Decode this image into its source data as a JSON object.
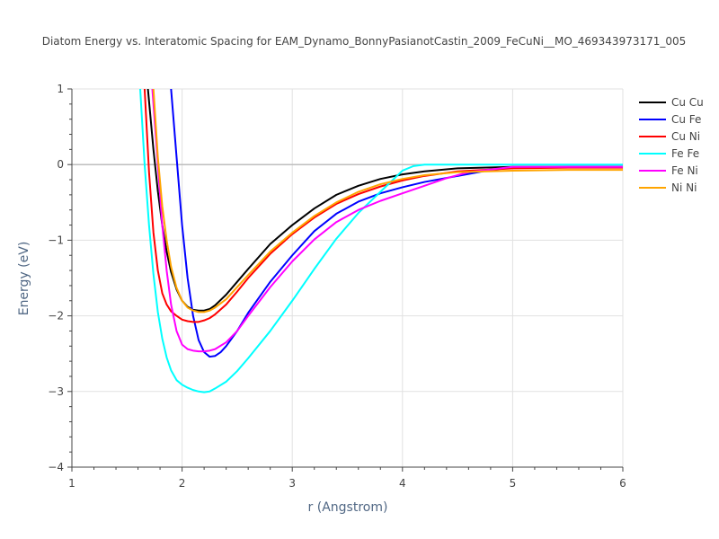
{
  "chart_data": {
    "type": "line",
    "title": "Diatom Energy vs. Interatomic Spacing for EAM_Dynamo_BonnyPasianotCastin_2009_FeCuNi__MO_469343973171_005",
    "xlabel": "r (Angstrom)",
    "ylabel": "Energy (eV)",
    "xlim": [
      1,
      6
    ],
    "ylim": [
      -4,
      1
    ],
    "xticks": [
      1,
      2,
      3,
      4,
      5,
      6
    ],
    "yticks": [
      1,
      0,
      -1,
      -2,
      -3,
      -4
    ],
    "ytick_labels": [
      "1",
      "0",
      "−1",
      "−2",
      "−3",
      "−4"
    ],
    "grid": true,
    "legend_position": "right",
    "series": [
      {
        "name": "Cu Cu",
        "color": "#000000",
        "x": [
          1.69,
          1.74,
          1.78,
          1.82,
          1.86,
          1.9,
          1.95,
          2.0,
          2.05,
          2.1,
          2.15,
          2.2,
          2.25,
          2.3,
          2.4,
          2.5,
          2.6,
          2.8,
          3.0,
          3.2,
          3.4,
          3.6,
          3.8,
          4.0,
          4.2,
          4.5,
          5.0,
          5.5,
          6.0
        ],
        "y": [
          1.0,
          0.2,
          -0.35,
          -0.8,
          -1.15,
          -1.42,
          -1.65,
          -1.8,
          -1.88,
          -1.92,
          -1.93,
          -1.93,
          -1.91,
          -1.86,
          -1.72,
          -1.55,
          -1.38,
          -1.05,
          -0.8,
          -0.58,
          -0.4,
          -0.28,
          -0.19,
          -0.13,
          -0.09,
          -0.05,
          -0.03,
          -0.03,
          -0.03
        ]
      },
      {
        "name": "Cu Fe",
        "color": "#0000ff",
        "x": [
          1.9,
          1.95,
          2.0,
          2.05,
          2.1,
          2.15,
          2.2,
          2.25,
          2.3,
          2.35,
          2.4,
          2.5,
          2.6,
          2.8,
          3.0,
          3.2,
          3.4,
          3.6,
          3.8,
          4.0,
          4.2,
          4.5,
          4.8,
          5.0,
          5.5,
          6.0
        ],
        "y": [
          1.0,
          0.1,
          -0.8,
          -1.5,
          -2.0,
          -2.32,
          -2.48,
          -2.54,
          -2.53,
          -2.48,
          -2.4,
          -2.2,
          -1.96,
          -1.55,
          -1.2,
          -0.88,
          -0.65,
          -0.49,
          -0.38,
          -0.3,
          -0.23,
          -0.15,
          -0.07,
          -0.04,
          -0.03,
          -0.03
        ]
      },
      {
        "name": "Cu Ni",
        "color": "#ff0000",
        "x": [
          1.66,
          1.7,
          1.74,
          1.78,
          1.82,
          1.86,
          1.9,
          1.95,
          2.0,
          2.05,
          2.1,
          2.15,
          2.2,
          2.25,
          2.3,
          2.4,
          2.5,
          2.6,
          2.8,
          3.0,
          3.2,
          3.4,
          3.6,
          3.8,
          4.0,
          4.2,
          4.5,
          5.0,
          5.5,
          6.0
        ],
        "y": [
          1.0,
          -0.1,
          -0.9,
          -1.4,
          -1.7,
          -1.85,
          -1.94,
          -2.0,
          -2.05,
          -2.07,
          -2.08,
          -2.08,
          -2.06,
          -2.03,
          -1.98,
          -1.85,
          -1.68,
          -1.5,
          -1.18,
          -0.92,
          -0.7,
          -0.52,
          -0.39,
          -0.29,
          -0.21,
          -0.15,
          -0.09,
          -0.05,
          -0.04,
          -0.04
        ]
      },
      {
        "name": "Fe Fe",
        "color": "#00ffff",
        "x": [
          1.62,
          1.66,
          1.7,
          1.74,
          1.78,
          1.82,
          1.86,
          1.9,
          1.95,
          2.0,
          2.05,
          2.1,
          2.15,
          2.2,
          2.25,
          2.3,
          2.4,
          2.5,
          2.6,
          2.8,
          3.0,
          3.2,
          3.4,
          3.6,
          3.8,
          3.9,
          4.0,
          4.1,
          4.2,
          4.5,
          5.0,
          5.5,
          6.0
        ],
        "y": [
          1.0,
          0.0,
          -0.8,
          -1.45,
          -1.95,
          -2.3,
          -2.55,
          -2.72,
          -2.85,
          -2.91,
          -2.95,
          -2.98,
          -3.0,
          -3.01,
          -3.0,
          -2.96,
          -2.87,
          -2.73,
          -2.56,
          -2.2,
          -1.8,
          -1.38,
          -0.98,
          -0.64,
          -0.36,
          -0.22,
          -0.08,
          -0.02,
          0.0,
          0.0,
          0.0,
          0.0,
          0.0
        ]
      },
      {
        "name": "Fe Ni",
        "color": "#ff00ff",
        "x": [
          1.73,
          1.78,
          1.82,
          1.86,
          1.9,
          1.95,
          2.0,
          2.05,
          2.1,
          2.15,
          2.2,
          2.25,
          2.3,
          2.4,
          2.5,
          2.6,
          2.8,
          3.0,
          3.2,
          3.4,
          3.6,
          3.8,
          4.0,
          4.2,
          4.4,
          4.6,
          5.0,
          5.5,
          6.0
        ],
        "y": [
          1.0,
          0.0,
          -0.8,
          -1.4,
          -1.85,
          -2.2,
          -2.38,
          -2.44,
          -2.46,
          -2.47,
          -2.47,
          -2.46,
          -2.44,
          -2.35,
          -2.2,
          -2.0,
          -1.62,
          -1.28,
          -0.99,
          -0.76,
          -0.6,
          -0.48,
          -0.38,
          -0.28,
          -0.18,
          -0.1,
          -0.03,
          -0.03,
          -0.03
        ]
      },
      {
        "name": "Ni Ni",
        "color": "#ffa500",
        "x": [
          1.74,
          1.78,
          1.82,
          1.86,
          1.9,
          1.95,
          2.0,
          2.05,
          2.1,
          2.15,
          2.2,
          2.25,
          2.3,
          2.4,
          2.5,
          2.6,
          2.8,
          3.0,
          3.2,
          3.4,
          3.6,
          3.8,
          4.0,
          4.2,
          4.5,
          5.0,
          5.5,
          6.0
        ],
        "y": [
          1.0,
          0.1,
          -0.55,
          -1.0,
          -1.35,
          -1.63,
          -1.8,
          -1.89,
          -1.93,
          -1.95,
          -1.95,
          -1.93,
          -1.89,
          -1.78,
          -1.62,
          -1.46,
          -1.15,
          -0.9,
          -0.68,
          -0.5,
          -0.36,
          -0.26,
          -0.19,
          -0.14,
          -0.1,
          -0.08,
          -0.07,
          -0.07
        ]
      }
    ]
  }
}
